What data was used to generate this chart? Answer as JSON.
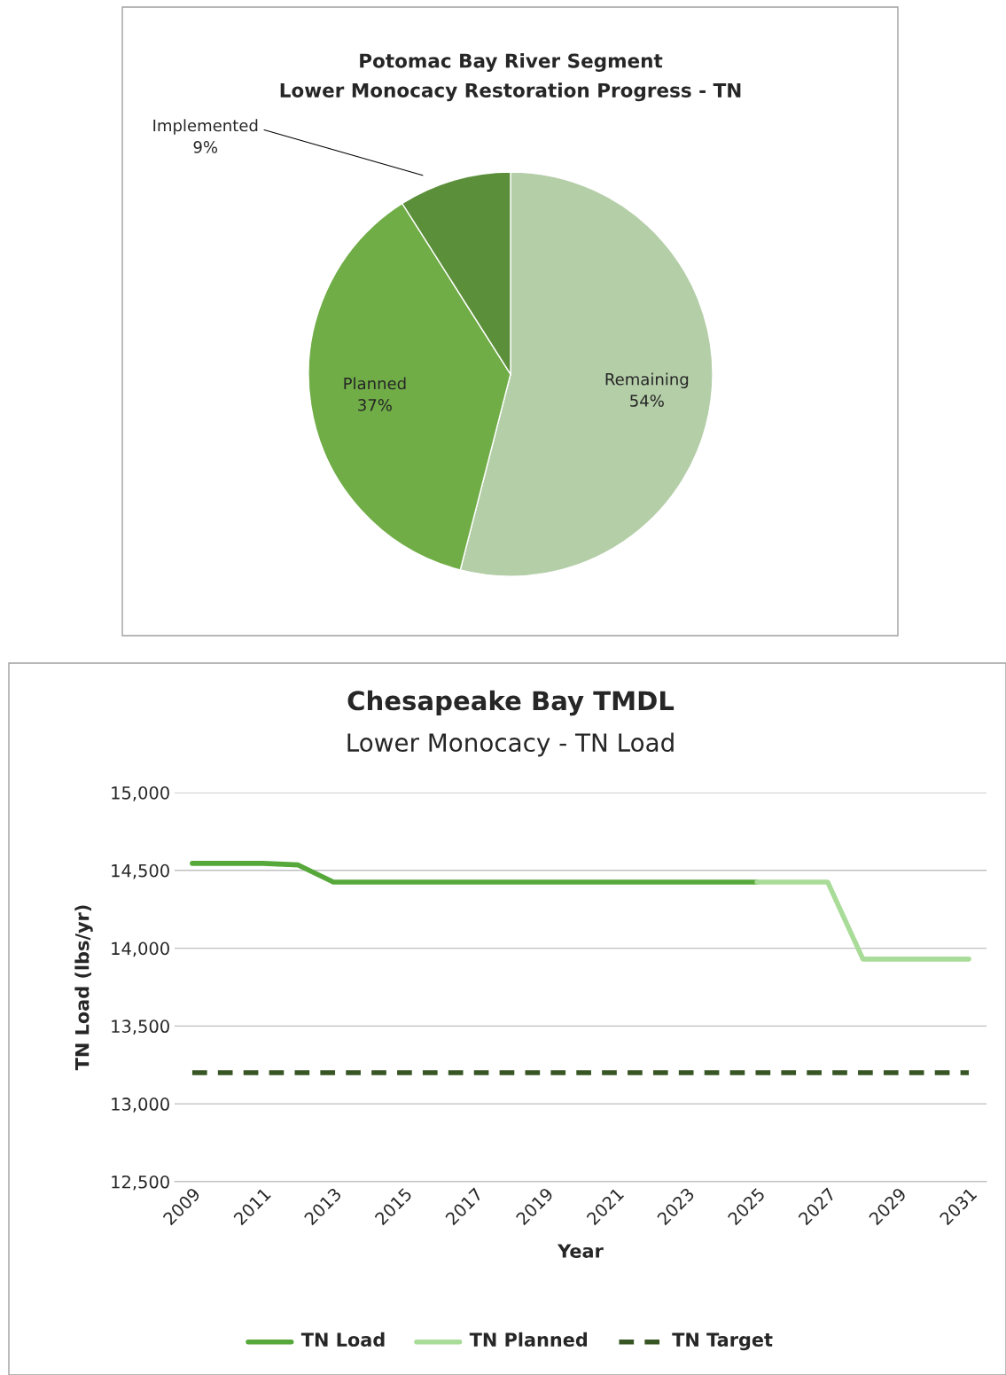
{
  "chart_data": [
    {
      "type": "pie",
      "title": "Potomac Bay River Segment\nLower Monocacy Restoration Progress - TN",
      "categories": [
        "Remaining",
        "Planned",
        "Implemented"
      ],
      "values": [
        54,
        37,
        9
      ],
      "value_labels": [
        "54%",
        "37%",
        "9%"
      ],
      "colors": [
        "#b4cea8",
        "#70ad47",
        "#5b8f3a"
      ]
    },
    {
      "type": "line",
      "title": "Chesapeake Bay TMDL",
      "subtitle": "Lower Monocacy - TN Load",
      "xlabel": "Year",
      "ylabel": "TN Load (lbs/yr)",
      "xlim": [
        2008.5,
        2031.5
      ],
      "xticks": [
        2009,
        2011,
        2013,
        2015,
        2017,
        2019,
        2021,
        2023,
        2025,
        2027,
        2029,
        2031
      ],
      "ylim": [
        12500,
        15000
      ],
      "yticks": [
        {
          "value": 12500,
          "label": "12,500"
        },
        {
          "value": 13000,
          "label": "13,000"
        },
        {
          "value": 13500,
          "label": "13,500"
        },
        {
          "value": 14000,
          "label": "14,000"
        },
        {
          "value": 14500,
          "label": "14,500"
        },
        {
          "value": 15000,
          "label": "15,000"
        }
      ],
      "grid": "y",
      "legend": "bottom",
      "series": [
        {
          "name": "TN Load",
          "color": "#56a83a",
          "line_style": "solid",
          "x": [
            2009,
            2010,
            2011,
            2012,
            2013,
            2014,
            2015,
            2016,
            2017,
            2018,
            2019,
            2020,
            2021,
            2022,
            2023,
            2024,
            2025
          ],
          "values": [
            14545,
            14545,
            14545,
            14535,
            14425,
            14425,
            14425,
            14425,
            14425,
            14425,
            14425,
            14425,
            14425,
            14425,
            14425,
            14425,
            14425
          ]
        },
        {
          "name": "TN Planned",
          "color": "#a9dc98",
          "line_style": "solid",
          "x": [
            2025,
            2026,
            2027,
            2028,
            2029,
            2030,
            2031
          ],
          "values": [
            14425,
            14425,
            14425,
            13930,
            13930,
            13930,
            13930
          ]
        },
        {
          "name": "TN Target",
          "color": "#375623",
          "line_style": "dashed",
          "x": [
            2009,
            2031
          ],
          "values": [
            13200,
            13200
          ]
        }
      ]
    }
  ]
}
